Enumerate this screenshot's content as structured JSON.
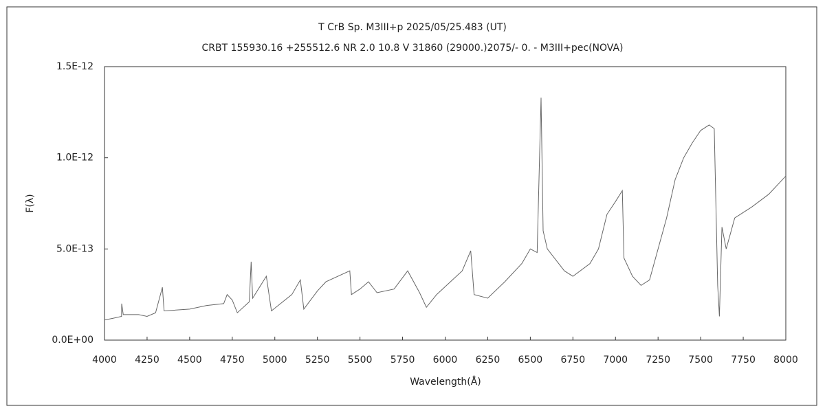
{
  "chart_data": {
    "type": "line",
    "title": "T CrB    Sp. M3III+p    2025/05/25.483 (UT)",
    "subtitle": "CRBT 155930.16 +255512.6  NR 2.0 10.8 V 31860 (29000.)2075/-  0. - M3III+pec(NOVA)",
    "xlabel": "Wavelength(Å)",
    "ylabel": "F(λ)",
    "xlim": [
      4000,
      8000
    ],
    "xticks": [
      4000,
      4250,
      4500,
      4750,
      5000,
      5250,
      5500,
      5750,
      6000,
      6250,
      6500,
      6750,
      7000,
      7250,
      7500,
      7750,
      8000
    ],
    "ylim": [
      0,
      1.5e-12
    ],
    "yticks": [
      {
        "value": 0,
        "label": "0.0E+00"
      },
      {
        "value": 5e-13,
        "label": "5.0E-13"
      },
      {
        "value": 1e-12,
        "label": "1.0E-12"
      },
      {
        "value": 1.5e-12,
        "label": "1.5E-12"
      }
    ],
    "grid": false,
    "series": [
      {
        "color": "#666666",
        "x": [
          4000,
          4050,
          4100,
          4101,
          4110,
          4200,
          4250,
          4300,
          4340,
          4350,
          4500,
          4600,
          4700,
          4720,
          4750,
          4780,
          4850,
          4861,
          4870,
          4950,
          4980,
          5100,
          5150,
          5170,
          5250,
          5300,
          5440,
          5450,
          5500,
          5550,
          5600,
          5700,
          5780,
          5850,
          5890,
          5950,
          6100,
          6150,
          6170,
          6250,
          6350,
          6450,
          6500,
          6540,
          6563,
          6575,
          6600,
          6700,
          6750,
          6850,
          6900,
          6950,
          7000,
          7040,
          7050,
          7100,
          7150,
          7200,
          7250,
          7300,
          7350,
          7400,
          7450,
          7500,
          7550,
          7580,
          7600,
          7610,
          7625,
          7650,
          7700,
          7800,
          7900,
          8000
        ],
        "values": [
          1.1e-13,
          1.2e-13,
          1.3e-13,
          2e-13,
          1.4e-13,
          1.4e-13,
          1.3e-13,
          1.5e-13,
          2.9e-13,
          1.6e-13,
          1.7e-13,
          1.9e-13,
          2e-13,
          2.5e-13,
          2.2e-13,
          1.5e-13,
          2.1e-13,
          4.3e-13,
          2.3e-13,
          3.5e-13,
          1.6e-13,
          2.5e-13,
          3.3e-13,
          1.7e-13,
          2.7e-13,
          3.2e-13,
          3.8e-13,
          2.5e-13,
          2.8e-13,
          3.2e-13,
          2.6e-13,
          2.8e-13,
          3.8e-13,
          2.6e-13,
          1.8e-13,
          2.5e-13,
          3.8e-13,
          4.9e-13,
          2.5e-13,
          2.3e-13,
          3.2e-13,
          4.2e-13,
          5e-13,
          4.8e-13,
          1.33e-12,
          6e-13,
          5e-13,
          3.8e-13,
          3.5e-13,
          4.2e-13,
          5e-13,
          6.9e-13,
          7.6e-13,
          8.2e-13,
          4.5e-13,
          3.5e-13,
          3e-13,
          3.3e-13,
          5e-13,
          6.7e-13,
          8.8e-13,
          1e-12,
          1.08e-12,
          1.15e-12,
          1.18e-12,
          1.16e-12,
          3e-13,
          1.3e-13,
          6.2e-13,
          5e-13,
          6.7e-13,
          7.3e-13,
          8e-13,
          9e-13
        ]
      }
    ]
  }
}
